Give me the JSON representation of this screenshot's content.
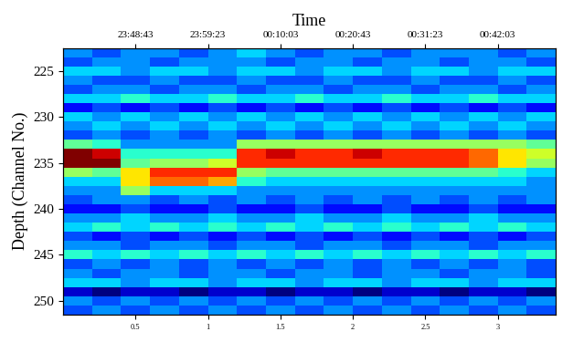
{
  "chart_data": {
    "type": "heatmap",
    "x2label": "Time",
    "ylabel": "Depth (Channel No.)",
    "x": [
      0.1,
      0.3,
      0.5,
      0.7,
      0.9,
      1.1,
      1.3,
      1.5,
      1.7,
      1.9,
      2.1,
      2.3,
      2.5,
      2.7,
      2.9,
      3.1,
      3.3
    ],
    "y": [
      223,
      224,
      225,
      226,
      227,
      228,
      229,
      230,
      231,
      232,
      233,
      234,
      235,
      236,
      237,
      238,
      239,
      240,
      241,
      242,
      243,
      244,
      245,
      246,
      247,
      248,
      249,
      250,
      251
    ],
    "xlim": [
      0,
      3.4
    ],
    "ylim": [
      251.5,
      222.5
    ],
    "xticks": [
      0.5,
      1,
      1.5,
      2,
      2.5,
      3
    ],
    "x2ticks": [
      {
        "value": 0.5,
        "label": "23:48:43"
      },
      {
        "value": 1,
        "label": "23:59:23"
      },
      {
        "value": 1.5,
        "label": "00:10:03"
      },
      {
        "value": 2,
        "label": "00:20:43"
      },
      {
        "value": 2.5,
        "label": "00:31:23"
      },
      {
        "value": 3,
        "label": "00:42:03"
      }
    ],
    "yticks": [
      225,
      230,
      235,
      240,
      245,
      250
    ],
    "cells": [
      [
        0.4,
        0.35,
        0.4,
        0.4,
        0.35,
        0.4,
        0.45,
        0.4,
        0.35,
        0.4,
        0.4,
        0.35,
        0.4,
        0.4,
        0.4,
        0.35,
        0.4
      ],
      [
        0.35,
        0.4,
        0.4,
        0.35,
        0.4,
        0.4,
        0.4,
        0.35,
        0.4,
        0.4,
        0.35,
        0.4,
        0.4,
        0.35,
        0.4,
        0.4,
        0.35
      ],
      [
        0.45,
        0.45,
        0.4,
        0.45,
        0.45,
        0.4,
        0.45,
        0.45,
        0.4,
        0.45,
        0.45,
        0.4,
        0.45,
        0.45,
        0.4,
        0.45,
        0.45
      ],
      [
        0.4,
        0.35,
        0.35,
        0.4,
        0.35,
        0.35,
        0.4,
        0.35,
        0.35,
        0.4,
        0.35,
        0.35,
        0.4,
        0.35,
        0.35,
        0.4,
        0.35
      ],
      [
        0.35,
        0.4,
        0.4,
        0.35,
        0.4,
        0.4,
        0.35,
        0.4,
        0.4,
        0.35,
        0.4,
        0.4,
        0.35,
        0.4,
        0.4,
        0.35,
        0.4
      ],
      [
        0.45,
        0.45,
        0.5,
        0.45,
        0.45,
        0.5,
        0.45,
        0.45,
        0.5,
        0.45,
        0.45,
        0.5,
        0.45,
        0.45,
        0.5,
        0.45,
        0.45
      ],
      [
        0.3,
        0.35,
        0.3,
        0.35,
        0.3,
        0.35,
        0.3,
        0.35,
        0.3,
        0.35,
        0.3,
        0.35,
        0.3,
        0.35,
        0.3,
        0.35,
        0.3
      ],
      [
        0.45,
        0.4,
        0.45,
        0.4,
        0.45,
        0.4,
        0.45,
        0.4,
        0.45,
        0.4,
        0.45,
        0.4,
        0.45,
        0.4,
        0.45,
        0.4,
        0.45
      ],
      [
        0.4,
        0.45,
        0.4,
        0.45,
        0.4,
        0.45,
        0.4,
        0.45,
        0.4,
        0.45,
        0.4,
        0.45,
        0.4,
        0.45,
        0.4,
        0.45,
        0.4
      ],
      [
        0.35,
        0.4,
        0.35,
        0.4,
        0.35,
        0.4,
        0.35,
        0.4,
        0.35,
        0.4,
        0.35,
        0.4,
        0.35,
        0.4,
        0.35,
        0.4,
        0.35
      ],
      [
        0.55,
        0.5,
        0.4,
        0.4,
        0.4,
        0.4,
        0.6,
        0.6,
        0.6,
        0.6,
        0.6,
        0.6,
        0.6,
        0.6,
        0.6,
        0.6,
        0.55
      ],
      [
        0.95,
        0.9,
        0.5,
        0.5,
        0.5,
        0.5,
        0.85,
        0.9,
        0.85,
        0.85,
        0.9,
        0.85,
        0.85,
        0.85,
        0.8,
        0.7,
        0.65
      ],
      [
        0.95,
        0.95,
        0.55,
        0.6,
        0.6,
        0.65,
        0.85,
        0.85,
        0.85,
        0.85,
        0.85,
        0.85,
        0.85,
        0.85,
        0.8,
        0.7,
        0.6
      ],
      [
        0.6,
        0.55,
        0.7,
        0.85,
        0.85,
        0.85,
        0.6,
        0.55,
        0.55,
        0.55,
        0.55,
        0.55,
        0.55,
        0.55,
        0.55,
        0.5,
        0.45
      ],
      [
        0.45,
        0.45,
        0.7,
        0.8,
        0.8,
        0.75,
        0.5,
        0.45,
        0.45,
        0.45,
        0.45,
        0.45,
        0.45,
        0.45,
        0.45,
        0.45,
        0.4
      ],
      [
        0.4,
        0.4,
        0.6,
        0.45,
        0.45,
        0.45,
        0.4,
        0.4,
        0.4,
        0.4,
        0.4,
        0.4,
        0.4,
        0.4,
        0.4,
        0.4,
        0.4
      ],
      [
        0.35,
        0.4,
        0.4,
        0.35,
        0.4,
        0.35,
        0.4,
        0.35,
        0.4,
        0.35,
        0.4,
        0.35,
        0.4,
        0.35,
        0.4,
        0.35,
        0.4
      ],
      [
        0.3,
        0.3,
        0.35,
        0.3,
        0.3,
        0.35,
        0.3,
        0.3,
        0.35,
        0.3,
        0.3,
        0.35,
        0.3,
        0.3,
        0.35,
        0.3,
        0.3
      ],
      [
        0.4,
        0.4,
        0.45,
        0.4,
        0.4,
        0.45,
        0.4,
        0.4,
        0.45,
        0.4,
        0.4,
        0.45,
        0.4,
        0.4,
        0.45,
        0.4,
        0.4
      ],
      [
        0.45,
        0.5,
        0.45,
        0.5,
        0.45,
        0.5,
        0.45,
        0.5,
        0.45,
        0.5,
        0.45,
        0.5,
        0.45,
        0.5,
        0.45,
        0.5,
        0.45
      ],
      [
        0.35,
        0.3,
        0.35,
        0.3,
        0.35,
        0.3,
        0.35,
        0.3,
        0.35,
        0.3,
        0.35,
        0.3,
        0.35,
        0.3,
        0.35,
        0.3,
        0.35
      ],
      [
        0.4,
        0.4,
        0.35,
        0.4,
        0.4,
        0.35,
        0.4,
        0.4,
        0.35,
        0.4,
        0.4,
        0.35,
        0.4,
        0.4,
        0.35,
        0.4,
        0.4
      ],
      [
        0.5,
        0.45,
        0.5,
        0.45,
        0.5,
        0.45,
        0.5,
        0.45,
        0.5,
        0.45,
        0.5,
        0.45,
        0.5,
        0.45,
        0.5,
        0.45,
        0.5
      ],
      [
        0.35,
        0.4,
        0.35,
        0.4,
        0.35,
        0.4,
        0.35,
        0.4,
        0.35,
        0.4,
        0.35,
        0.4,
        0.35,
        0.4,
        0.35,
        0.4,
        0.35
      ],
      [
        0.4,
        0.35,
        0.4,
        0.4,
        0.35,
        0.4,
        0.4,
        0.35,
        0.4,
        0.4,
        0.35,
        0.4,
        0.4,
        0.35,
        0.4,
        0.4,
        0.35
      ],
      [
        0.45,
        0.45,
        0.4,
        0.45,
        0.45,
        0.4,
        0.45,
        0.45,
        0.4,
        0.45,
        0.45,
        0.4,
        0.45,
        0.45,
        0.4,
        0.45,
        0.45
      ],
      [
        0.25,
        0.2,
        0.25,
        0.25,
        0.2,
        0.25,
        0.25,
        0.2,
        0.25,
        0.25,
        0.2,
        0.25,
        0.25,
        0.2,
        0.25,
        0.25,
        0.2
      ],
      [
        0.4,
        0.35,
        0.4,
        0.35,
        0.4,
        0.35,
        0.4,
        0.35,
        0.4,
        0.35,
        0.4,
        0.35,
        0.4,
        0.35,
        0.4,
        0.35,
        0.4
      ],
      [
        0.35,
        0.4,
        0.35,
        0.4,
        0.35,
        0.4,
        0.35,
        0.4,
        0.35,
        0.4,
        0.35,
        0.4,
        0.35,
        0.4,
        0.35,
        0.4,
        0.35
      ]
    ]
  }
}
